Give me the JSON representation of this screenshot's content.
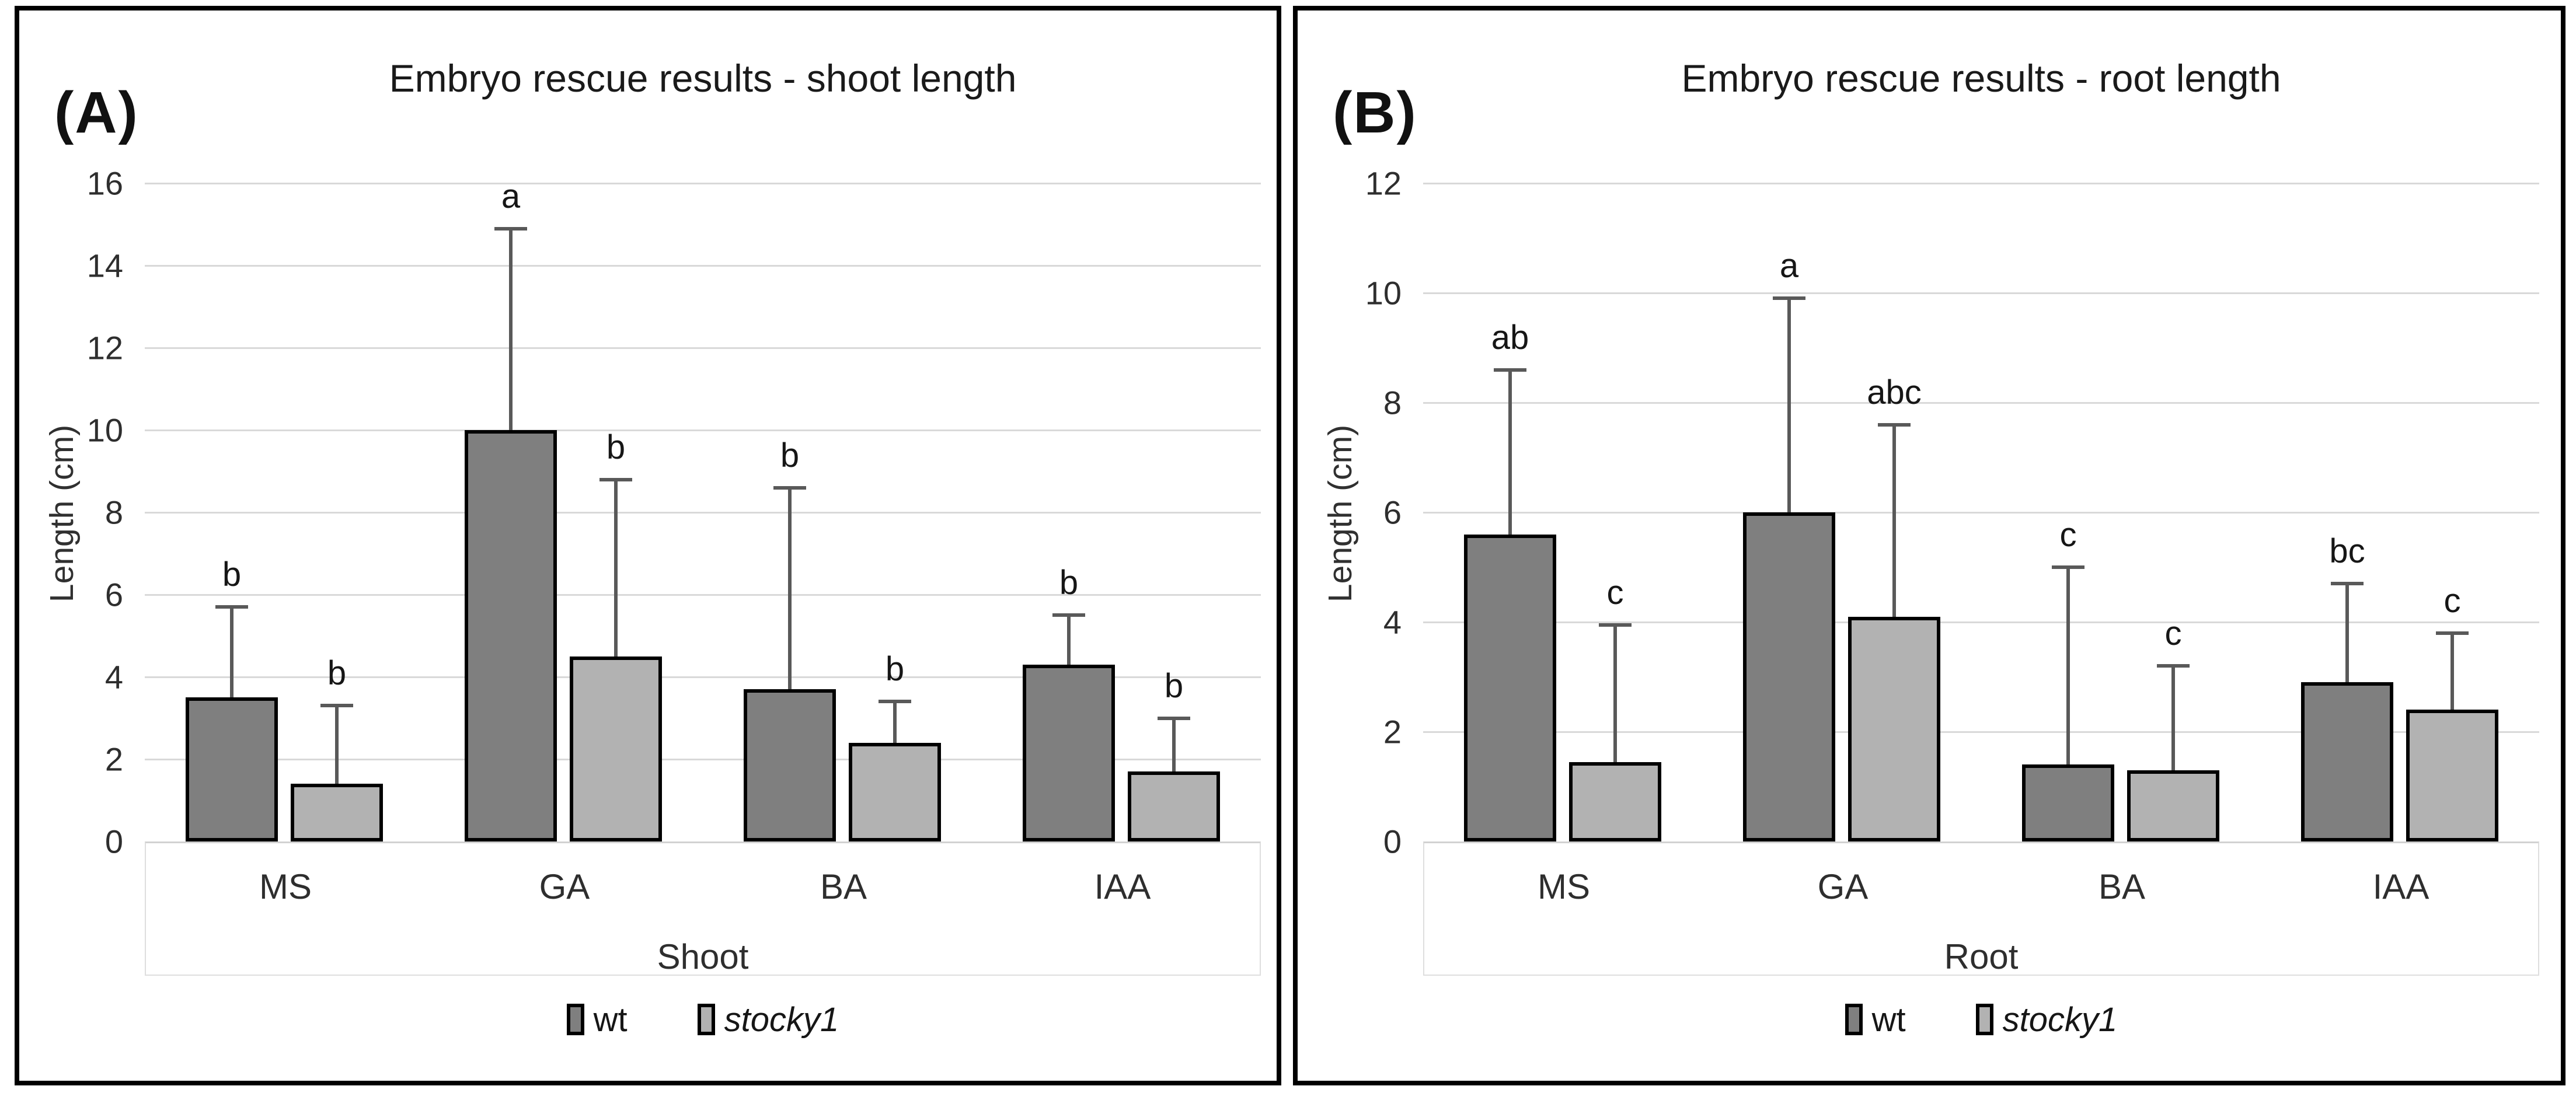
{
  "figure": {
    "background": "#ffffff",
    "panel_border_color": "#000000",
    "gridline_color": "#d9d9d9",
    "axis_line_color": "#d2d2d2",
    "error_bar_color": "#595959",
    "bar_outline_color": "#000000"
  },
  "legend": {
    "items": [
      {
        "name": "wt",
        "italic": false,
        "color": "#7f7f7f"
      },
      {
        "name": "stocky1",
        "italic": true,
        "color": "#b2b2b2"
      }
    ]
  },
  "chart_data": [
    {
      "type": "bar",
      "panel_label": "(A)",
      "title": "Embryo rescue results - shoot length",
      "xlabel": "Shoot",
      "ylabel": "Length (cm)",
      "ylim": [
        0,
        16
      ],
      "ytick_step": 2,
      "grid": true,
      "legend_position": "bottom",
      "categories": [
        "MS",
        "GA",
        "BA",
        "IAA"
      ],
      "series": [
        {
          "name": "wt",
          "color": "#7f7f7f",
          "italic": false,
          "values": [
            3.5,
            10.0,
            3.7,
            4.3
          ],
          "errors": [
            2.2,
            4.9,
            4.9,
            1.2
          ],
          "letters": [
            "b",
            "a",
            "b",
            "b"
          ]
        },
        {
          "name": "stocky1",
          "color": "#b2b2b2",
          "italic": true,
          "values": [
            1.4,
            4.5,
            2.4,
            1.7
          ],
          "errors": [
            1.9,
            4.3,
            1.0,
            1.3
          ],
          "letters": [
            "b",
            "b",
            "b",
            "b"
          ]
        }
      ]
    },
    {
      "type": "bar",
      "panel_label": "(B)",
      "title": "Embryo rescue results - root length",
      "xlabel": "Root",
      "ylabel": "Length (cm)",
      "ylim": [
        0,
        12
      ],
      "ytick_step": 2,
      "grid": true,
      "legend_position": "bottom",
      "categories": [
        "MS",
        "GA",
        "BA",
        "IAA"
      ],
      "series": [
        {
          "name": "wt",
          "color": "#7f7f7f",
          "italic": false,
          "values": [
            5.6,
            6.0,
            1.4,
            2.9
          ],
          "errors": [
            3.0,
            3.9,
            3.6,
            1.8
          ],
          "letters": [
            "ab",
            "a",
            "c",
            "bc"
          ]
        },
        {
          "name": "stocky1",
          "color": "#b2b2b2",
          "italic": true,
          "values": [
            1.45,
            4.1,
            1.3,
            2.4
          ],
          "errors": [
            2.5,
            3.5,
            1.9,
            1.4
          ],
          "letters": [
            "c",
            "abc",
            "c",
            "c"
          ]
        }
      ]
    }
  ]
}
